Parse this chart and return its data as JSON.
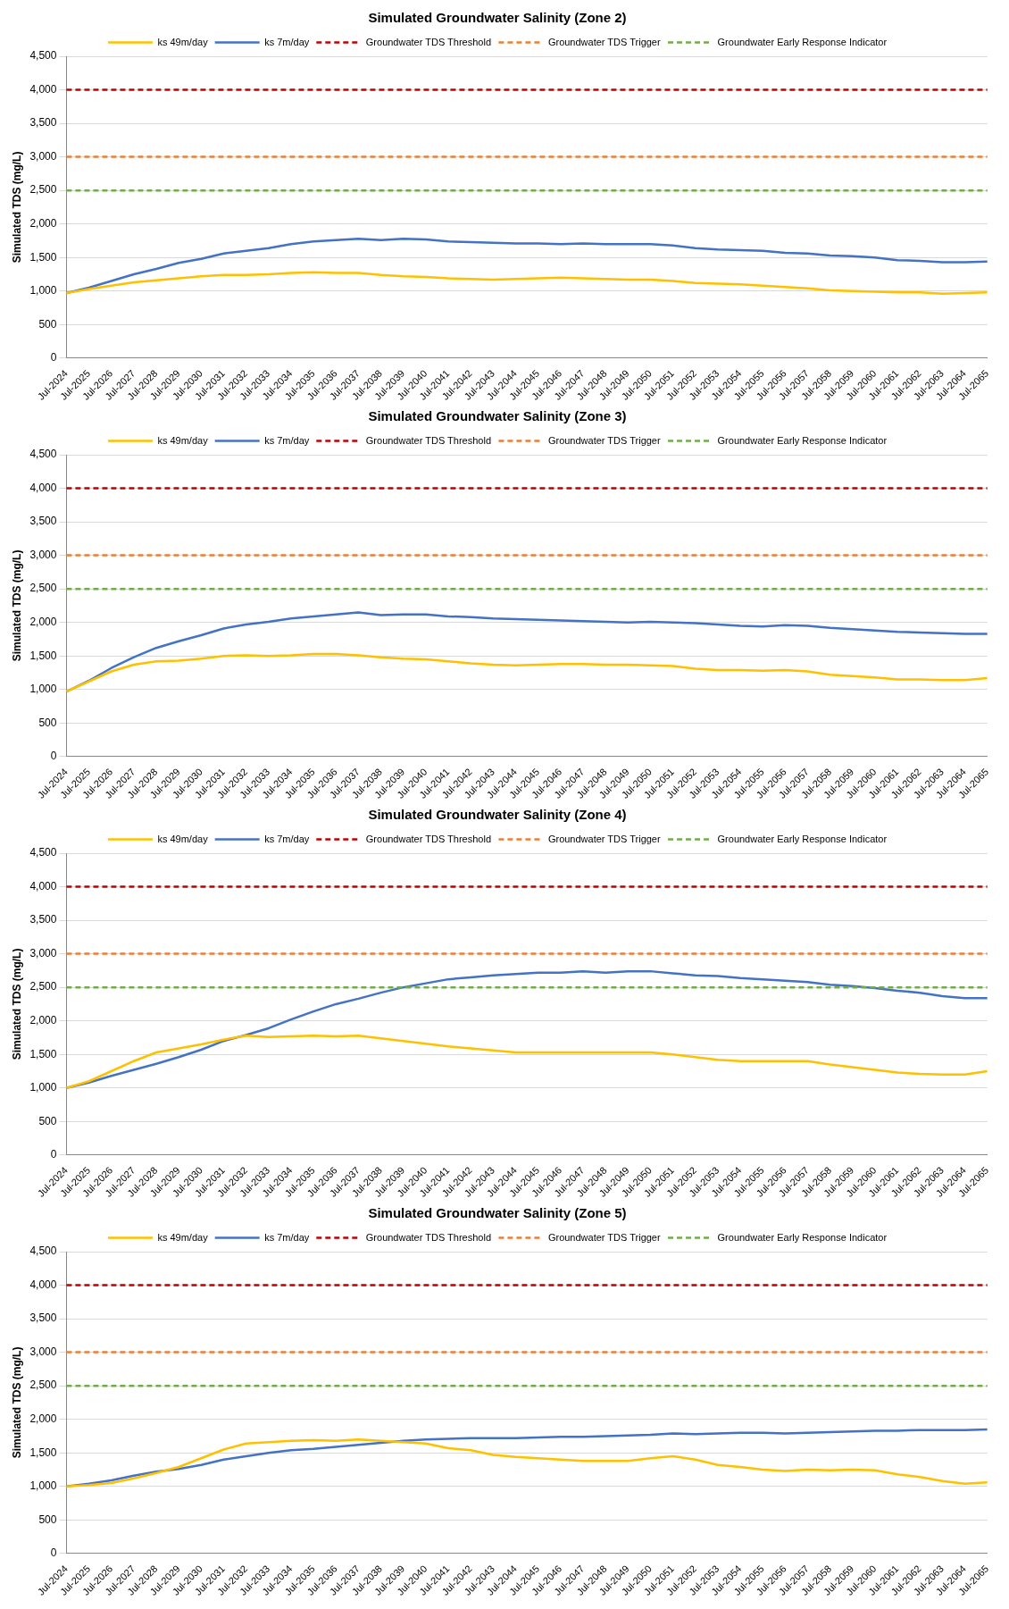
{
  "chart_data": [
    {
      "type": "line",
      "title": "Simulated Groundwater Salinity (Zone 2)",
      "ylabel": "Simulated TDS (mg/L)",
      "legend": "top",
      "grid": "y",
      "marker": "none",
      "line_style": "solid",
      "categories": [
        "Jul-2024",
        "Jul-2025",
        "Jul-2026",
        "Jul-2027",
        "Jul-2028",
        "Jul-2029",
        "Jul-2030",
        "Jul-2031",
        "Jul-2032",
        "Jul-2033",
        "Jul-2034",
        "Jul-2035",
        "Jul-2036",
        "Jul-2037",
        "Jul-2038",
        "Jul-2039",
        "Jul-2040",
        "Jul-2041",
        "Jul-2042",
        "Jul-2043",
        "Jul-2044",
        "Jul-2045",
        "Jul-2046",
        "Jul-2047",
        "Jul-2048",
        "Jul-2049",
        "Jul-2050",
        "Jul-2051",
        "Jul-2052",
        "Jul-2053",
        "Jul-2054",
        "Jul-2055",
        "Jul-2056",
        "Jul-2057",
        "Jul-2058",
        "Jul-2059",
        "Jul-2060",
        "Jul-2061",
        "Jul-2062",
        "Jul-2063",
        "Jul-2064",
        "Jul-2065"
      ],
      "ylim": [
        0,
        4500
      ],
      "yticks": [
        {
          "value": 0,
          "label": "0"
        },
        {
          "value": 500,
          "label": "500"
        },
        {
          "value": 1000,
          "label": "1,000"
        },
        {
          "value": 1500,
          "label": "1,500"
        },
        {
          "value": 2000,
          "label": "2,000"
        },
        {
          "value": 2500,
          "label": "2,500"
        },
        {
          "value": 3000,
          "label": "3,000"
        },
        {
          "value": 3500,
          "label": "3,500"
        },
        {
          "value": 4000,
          "label": "4,000"
        },
        {
          "value": 4500,
          "label": "4,500"
        }
      ],
      "series": [
        {
          "name": "ks 49m/day",
          "color": "#ffc000",
          "values": [
            970,
            1030,
            1080,
            1130,
            1160,
            1190,
            1220,
            1240,
            1240,
            1250,
            1270,
            1280,
            1270,
            1270,
            1240,
            1220,
            1210,
            1190,
            1180,
            1170,
            1180,
            1190,
            1200,
            1190,
            1180,
            1170,
            1170,
            1150,
            1120,
            1110,
            1100,
            1080,
            1060,
            1040,
            1010,
            1000,
            990,
            980,
            980,
            960,
            970,
            980
          ]
        },
        {
          "name": "ks 7m/day",
          "color": "#4472c4",
          "values": [
            970,
            1050,
            1150,
            1250,
            1330,
            1420,
            1480,
            1560,
            1600,
            1640,
            1700,
            1740,
            1760,
            1780,
            1760,
            1780,
            1770,
            1740,
            1730,
            1720,
            1710,
            1710,
            1700,
            1710,
            1700,
            1700,
            1700,
            1680,
            1640,
            1620,
            1610,
            1600,
            1570,
            1560,
            1530,
            1520,
            1500,
            1460,
            1450,
            1430,
            1430,
            1440
          ]
        }
      ],
      "ref_lines": [
        {
          "axis": "y",
          "value": 4000,
          "label": "Groundwater TDS Threshold",
          "color": "#c00000",
          "line_style": "dashed"
        },
        {
          "axis": "y",
          "value": 3000,
          "label": "Groundwater TDS Trigger",
          "color": "#ed7d31",
          "line_style": "dashed"
        },
        {
          "axis": "y",
          "value": 2500,
          "label": "Groundwater Early Response Indicator",
          "color": "#70ad47",
          "line_style": "dashed"
        }
      ]
    },
    {
      "type": "line",
      "title": "Simulated Groundwater Salinity (Zone 3)",
      "ylabel": "Simulated TDS (mg/L)",
      "legend": "top",
      "grid": "y",
      "marker": "none",
      "line_style": "solid",
      "categories": [
        "Jul-2024",
        "Jul-2025",
        "Jul-2026",
        "Jul-2027",
        "Jul-2028",
        "Jul-2029",
        "Jul-2030",
        "Jul-2031",
        "Jul-2032",
        "Jul-2033",
        "Jul-2034",
        "Jul-2035",
        "Jul-2036",
        "Jul-2037",
        "Jul-2038",
        "Jul-2039",
        "Jul-2040",
        "Jul-2041",
        "Jul-2042",
        "Jul-2043",
        "Jul-2044",
        "Jul-2045",
        "Jul-2046",
        "Jul-2047",
        "Jul-2048",
        "Jul-2049",
        "Jul-2050",
        "Jul-2051",
        "Jul-2052",
        "Jul-2053",
        "Jul-2054",
        "Jul-2055",
        "Jul-2056",
        "Jul-2057",
        "Jul-2058",
        "Jul-2059",
        "Jul-2060",
        "Jul-2061",
        "Jul-2062",
        "Jul-2063",
        "Jul-2064",
        "Jul-2065"
      ],
      "ylim": [
        0,
        4500
      ],
      "yticks": [
        {
          "value": 0,
          "label": "0"
        },
        {
          "value": 500,
          "label": "500"
        },
        {
          "value": 1000,
          "label": "1,000"
        },
        {
          "value": 1500,
          "label": "1,500"
        },
        {
          "value": 2000,
          "label": "2,000"
        },
        {
          "value": 2500,
          "label": "2,500"
        },
        {
          "value": 3000,
          "label": "3,000"
        },
        {
          "value": 3500,
          "label": "3,500"
        },
        {
          "value": 4000,
          "label": "4,000"
        },
        {
          "value": 4500,
          "label": "4,500"
        }
      ],
      "series": [
        {
          "name": "ks 49m/day",
          "color": "#ffc000",
          "values": [
            970,
            1120,
            1270,
            1370,
            1420,
            1430,
            1460,
            1500,
            1510,
            1500,
            1510,
            1530,
            1530,
            1510,
            1480,
            1460,
            1450,
            1420,
            1390,
            1370,
            1360,
            1370,
            1380,
            1380,
            1370,
            1370,
            1360,
            1350,
            1310,
            1290,
            1290,
            1280,
            1290,
            1270,
            1220,
            1200,
            1180,
            1150,
            1150,
            1140,
            1140,
            1170
          ]
        },
        {
          "name": "ks 7m/day",
          "color": "#4472c4",
          "values": [
            970,
            1130,
            1320,
            1480,
            1620,
            1720,
            1810,
            1910,
            1970,
            2010,
            2060,
            2090,
            2120,
            2150,
            2110,
            2120,
            2120,
            2090,
            2080,
            2060,
            2050,
            2040,
            2030,
            2020,
            2010,
            2000,
            2010,
            2000,
            1990,
            1970,
            1950,
            1940,
            1960,
            1950,
            1920,
            1900,
            1880,
            1860,
            1850,
            1840,
            1830,
            1830
          ]
        }
      ],
      "ref_lines": [
        {
          "axis": "y",
          "value": 4000,
          "label": "Groundwater TDS Threshold",
          "color": "#c00000",
          "line_style": "dashed"
        },
        {
          "axis": "y",
          "value": 3000,
          "label": "Groundwater TDS Trigger",
          "color": "#ed7d31",
          "line_style": "dashed"
        },
        {
          "axis": "y",
          "value": 2500,
          "label": "Groundwater Early Response Indicator",
          "color": "#70ad47",
          "line_style": "dashed"
        }
      ]
    },
    {
      "type": "line",
      "title": "Simulated Groundwater Salinity (Zone 4)",
      "ylabel": "Simulated TDS (mg/L)",
      "legend": "top",
      "grid": "y",
      "marker": "none",
      "line_style": "solid",
      "categories": [
        "Jul-2024",
        "Jul-2025",
        "Jul-2026",
        "Jul-2027",
        "Jul-2028",
        "Jul-2029",
        "Jul-2030",
        "Jul-2031",
        "Jul-2032",
        "Jul-2033",
        "Jul-2034",
        "Jul-2035",
        "Jul-2036",
        "Jul-2037",
        "Jul-2038",
        "Jul-2039",
        "Jul-2040",
        "Jul-2041",
        "Jul-2042",
        "Jul-2043",
        "Jul-2044",
        "Jul-2045",
        "Jul-2046",
        "Jul-2047",
        "Jul-2048",
        "Jul-2049",
        "Jul-2050",
        "Jul-2051",
        "Jul-2052",
        "Jul-2053",
        "Jul-2054",
        "Jul-2055",
        "Jul-2056",
        "Jul-2057",
        "Jul-2058",
        "Jul-2059",
        "Jul-2060",
        "Jul-2061",
        "Jul-2062",
        "Jul-2063",
        "Jul-2064",
        "Jul-2065"
      ],
      "ylim": [
        0,
        4500
      ],
      "yticks": [
        {
          "value": 0,
          "label": "0"
        },
        {
          "value": 500,
          "label": "500"
        },
        {
          "value": 1000,
          "label": "1,000"
        },
        {
          "value": 1500,
          "label": "1,500"
        },
        {
          "value": 2000,
          "label": "2,000"
        },
        {
          "value": 2500,
          "label": "2,500"
        },
        {
          "value": 3000,
          "label": "3,000"
        },
        {
          "value": 3500,
          "label": "3,500"
        },
        {
          "value": 4000,
          "label": "4,000"
        },
        {
          "value": 4500,
          "label": "4,500"
        }
      ],
      "series": [
        {
          "name": "ks 49m/day",
          "color": "#ffc000",
          "values": [
            1000,
            1100,
            1250,
            1400,
            1530,
            1590,
            1650,
            1720,
            1780,
            1760,
            1770,
            1780,
            1770,
            1780,
            1740,
            1700,
            1660,
            1620,
            1590,
            1560,
            1530,
            1530,
            1530,
            1530,
            1530,
            1530,
            1530,
            1500,
            1460,
            1420,
            1400,
            1400,
            1400,
            1400,
            1350,
            1310,
            1270,
            1230,
            1210,
            1200,
            1200,
            1250
          ]
        },
        {
          "name": "ks 7m/day",
          "color": "#4472c4",
          "values": [
            1000,
            1080,
            1180,
            1270,
            1360,
            1460,
            1570,
            1700,
            1790,
            1890,
            2020,
            2140,
            2250,
            2330,
            2420,
            2500,
            2560,
            2620,
            2650,
            2680,
            2700,
            2720,
            2720,
            2740,
            2720,
            2740,
            2740,
            2710,
            2680,
            2670,
            2640,
            2620,
            2600,
            2580,
            2540,
            2520,
            2490,
            2450,
            2420,
            2370,
            2340,
            2340
          ]
        }
      ],
      "ref_lines": [
        {
          "axis": "y",
          "value": 4000,
          "label": "Groundwater TDS Threshold",
          "color": "#c00000",
          "line_style": "dashed"
        },
        {
          "axis": "y",
          "value": 3000,
          "label": "Groundwater TDS Trigger",
          "color": "#ed7d31",
          "line_style": "dashed"
        },
        {
          "axis": "y",
          "value": 2500,
          "label": "Groundwater Early Response Indicator",
          "color": "#70ad47",
          "line_style": "dashed"
        }
      ]
    },
    {
      "type": "line",
      "title": "Simulated Groundwater Salinity (Zone 5)",
      "ylabel": "Simulated TDS (mg/L)",
      "legend": "top",
      "grid": "y",
      "marker": "none",
      "line_style": "solid",
      "categories": [
        "Jul-2024",
        "Jul-2025",
        "Jul-2026",
        "Jul-2027",
        "Jul-2028",
        "Jul-2029",
        "Jul-2030",
        "Jul-2031",
        "Jul-2032",
        "Jul-2033",
        "Jul-2034",
        "Jul-2035",
        "Jul-2036",
        "Jul-2037",
        "Jul-2038",
        "Jul-2039",
        "Jul-2040",
        "Jul-2041",
        "Jul-2042",
        "Jul-2043",
        "Jul-2044",
        "Jul-2045",
        "Jul-2046",
        "Jul-2047",
        "Jul-2048",
        "Jul-2049",
        "Jul-2050",
        "Jul-2051",
        "Jul-2052",
        "Jul-2053",
        "Jul-2054",
        "Jul-2055",
        "Jul-2056",
        "Jul-2057",
        "Jul-2058",
        "Jul-2059",
        "Jul-2060",
        "Jul-2061",
        "Jul-2062",
        "Jul-2063",
        "Jul-2064",
        "Jul-2065"
      ],
      "ylim": [
        0,
        4500
      ],
      "yticks": [
        {
          "value": 0,
          "label": "0"
        },
        {
          "value": 500,
          "label": "500"
        },
        {
          "value": 1000,
          "label": "1,000"
        },
        {
          "value": 1500,
          "label": "1,500"
        },
        {
          "value": 2000,
          "label": "2,000"
        },
        {
          "value": 2500,
          "label": "2,500"
        },
        {
          "value": 3000,
          "label": "3,000"
        },
        {
          "value": 3500,
          "label": "3,500"
        },
        {
          "value": 4000,
          "label": "4,000"
        },
        {
          "value": 4500,
          "label": "4,500"
        }
      ],
      "series": [
        {
          "name": "ks 49m/day",
          "color": "#ffc000",
          "values": [
            1000,
            1020,
            1050,
            1120,
            1200,
            1290,
            1420,
            1550,
            1640,
            1660,
            1680,
            1690,
            1680,
            1700,
            1680,
            1660,
            1640,
            1570,
            1540,
            1470,
            1440,
            1420,
            1400,
            1380,
            1380,
            1380,
            1420,
            1450,
            1400,
            1320,
            1290,
            1250,
            1230,
            1250,
            1240,
            1250,
            1240,
            1180,
            1140,
            1080,
            1040,
            1060
          ]
        },
        {
          "name": "ks 7m/day",
          "color": "#4472c4",
          "values": [
            1000,
            1040,
            1090,
            1160,
            1220,
            1260,
            1320,
            1400,
            1450,
            1500,
            1540,
            1560,
            1590,
            1620,
            1650,
            1680,
            1700,
            1710,
            1720,
            1720,
            1720,
            1730,
            1740,
            1740,
            1750,
            1760,
            1770,
            1790,
            1780,
            1790,
            1800,
            1800,
            1790,
            1800,
            1810,
            1820,
            1830,
            1830,
            1840,
            1840,
            1840,
            1850
          ]
        }
      ],
      "ref_lines": [
        {
          "axis": "y",
          "value": 4000,
          "label": "Groundwater TDS Threshold",
          "color": "#c00000",
          "line_style": "dashed"
        },
        {
          "axis": "y",
          "value": 3000,
          "label": "Groundwater TDS Trigger",
          "color": "#ed7d31",
          "line_style": "dashed"
        },
        {
          "axis": "y",
          "value": 2500,
          "label": "Groundwater Early Response Indicator",
          "color": "#70ad47",
          "line_style": "dashed"
        }
      ]
    }
  ]
}
